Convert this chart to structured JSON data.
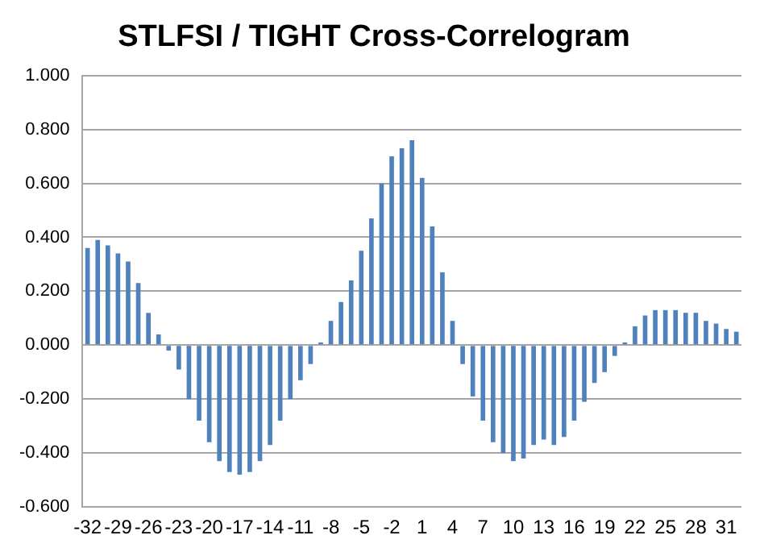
{
  "chart_data": {
    "type": "bar",
    "title": "STLFSI / TIGHT Cross-Correlogram",
    "categories": [
      "-32",
      null,
      null,
      "-29",
      null,
      null,
      "-26",
      null,
      null,
      "-23",
      null,
      null,
      "-20",
      null,
      null,
      "-17",
      null,
      null,
      "-14",
      null,
      null,
      "-11",
      null,
      null,
      "-8",
      null,
      null,
      "-5",
      null,
      null,
      "-2",
      null,
      null,
      "1",
      null,
      null,
      "4",
      null,
      null,
      "7",
      null,
      null,
      "10",
      null,
      null,
      "13",
      null,
      null,
      "16",
      null,
      null,
      "19",
      null,
      null,
      "22",
      null,
      null,
      "25",
      null,
      null,
      "28",
      null,
      null,
      "31",
      null
    ],
    "values": [
      0.36,
      0.39,
      0.37,
      0.34,
      0.31,
      0.23,
      0.12,
      0.04,
      -0.02,
      -0.09,
      -0.2,
      -0.28,
      -0.36,
      -0.43,
      -0.47,
      -0.48,
      -0.47,
      -0.43,
      -0.37,
      -0.28,
      -0.2,
      -0.13,
      -0.07,
      0.01,
      0.09,
      0.16,
      0.24,
      0.35,
      0.47,
      0.6,
      0.7,
      0.73,
      0.76,
      0.62,
      0.44,
      0.27,
      0.09,
      -0.07,
      -0.19,
      -0.28,
      -0.36,
      -0.4,
      -0.43,
      -0.42,
      -0.37,
      -0.35,
      -0.37,
      -0.34,
      -0.28,
      -0.21,
      -0.14,
      -0.1,
      -0.04,
      0.01,
      0.07,
      0.11,
      0.13,
      0.13,
      0.13,
      0.12,
      0.12,
      0.09,
      0.08,
      0.06,
      0.05
    ],
    "color": "#4f81bd",
    "ylim": [
      -0.6,
      1.0
    ],
    "yticks": [
      {
        "value": -0.6,
        "label": "-0.600"
      },
      {
        "value": -0.4,
        "label": "-0.400"
      },
      {
        "value": -0.2,
        "label": "-0.200"
      },
      {
        "value": 0,
        "label": "0.000"
      },
      {
        "value": 0.2,
        "label": "0.200"
      },
      {
        "value": 0.4,
        "label": "0.400"
      },
      {
        "value": 0.6,
        "label": "0.600"
      },
      {
        "value": 0.8,
        "label": "0.800"
      },
      {
        "value": 1.0,
        "label": "1.000"
      }
    ],
    "grid": "y",
    "legend": false
  }
}
